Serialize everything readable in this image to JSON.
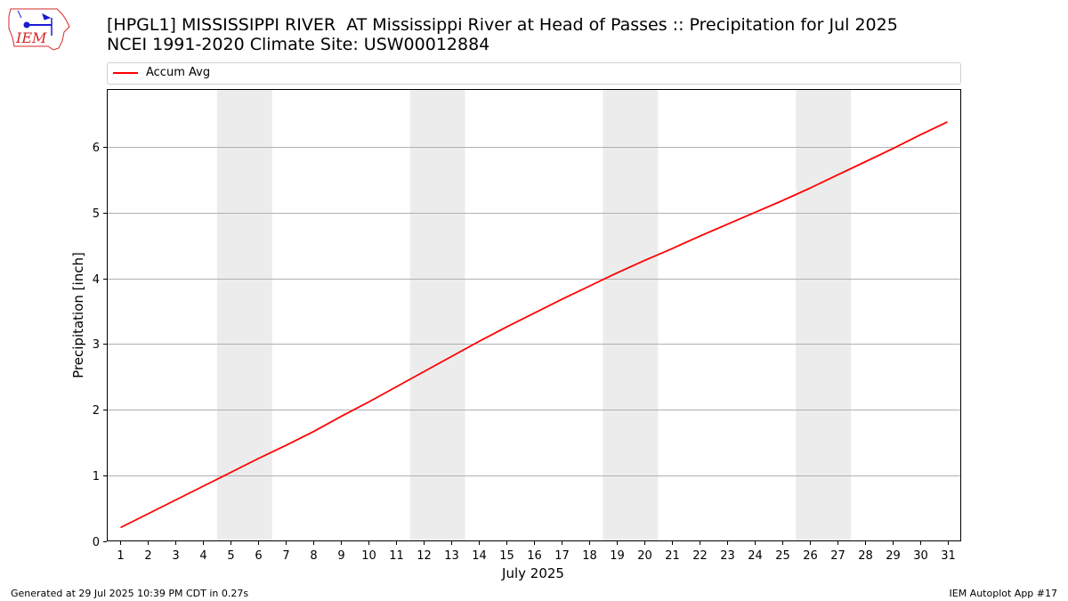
{
  "logo": {
    "text": "IEM",
    "color": "#d62728",
    "accent": "#1a1ad6"
  },
  "title": {
    "line1": "[HPGL1] MISSISSIPPI RIVER  AT Mississippi River at Head of Passes :: Precipitation for Jul 2025",
    "line2": "NCEI 1991-2020 Climate Site: USW00012884"
  },
  "legend": {
    "label": "Accum Avg",
    "color": "#ff0000"
  },
  "footer": {
    "left": "Generated at 29 Jul 2025 10:39 PM CDT in 0.27s",
    "right": "IEM Autoplot App #17"
  },
  "chart_data": {
    "type": "line",
    "title": "[HPGL1] MISSISSIPPI RIVER  AT Mississippi River at Head of Passes :: Precipitation for Jul 2025",
    "xlabel": "July 2025",
    "ylabel": "Precipitation [inch]",
    "x": [
      1,
      2,
      3,
      4,
      5,
      6,
      7,
      8,
      9,
      10,
      11,
      12,
      13,
      14,
      15,
      16,
      17,
      18,
      19,
      20,
      21,
      22,
      23,
      24,
      25,
      26,
      27,
      28,
      29,
      30,
      31
    ],
    "series": [
      {
        "name": "Accum Avg",
        "color": "#ff0000",
        "values": [
          0.21,
          0.42,
          0.63,
          0.84,
          1.05,
          1.26,
          1.46,
          1.67,
          1.9,
          2.12,
          2.35,
          2.58,
          2.81,
          3.04,
          3.26,
          3.47,
          3.68,
          3.88,
          4.08,
          4.27,
          4.45,
          4.64,
          4.82,
          5.0,
          5.18,
          5.37,
          5.57,
          5.77,
          5.97,
          6.18,
          6.38
        ]
      }
    ],
    "xlim": [
      0.5,
      31.5
    ],
    "ylim": [
      0,
      6.88
    ],
    "yticks": [
      0,
      1,
      2,
      3,
      4,
      5,
      6
    ],
    "xticks": [
      1,
      2,
      3,
      4,
      5,
      6,
      7,
      8,
      9,
      10,
      11,
      12,
      13,
      14,
      15,
      16,
      17,
      18,
      19,
      20,
      21,
      22,
      23,
      24,
      25,
      26,
      27,
      28,
      29,
      30,
      31
    ],
    "weekend_shading": [
      [
        5,
        6
      ],
      [
        12,
        13
      ],
      [
        19,
        20
      ],
      [
        26,
        27
      ]
    ],
    "shade_color": "#ececec",
    "grid": "horizontal",
    "grid_color": "#b0b0b0",
    "legend_position": "top"
  }
}
